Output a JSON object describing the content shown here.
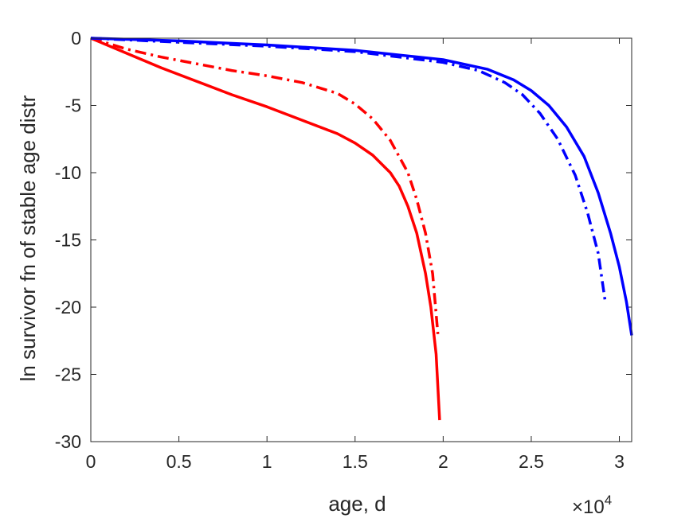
{
  "chart_data": {
    "type": "line",
    "xlabel": "age, d",
    "ylabel": "ln survivor fn of stable age distr",
    "x_multiplier": {
      "base": "×10",
      "exponent": "4"
    },
    "xlim": [
      0,
      30700
    ],
    "ylim": [
      -30,
      0
    ],
    "xticks": [
      0,
      5000,
      10000,
      15000,
      20000,
      25000,
      30000
    ],
    "xtick_labels": [
      "0",
      "0.5",
      "1",
      "1.5",
      "2",
      "2.5",
      "3"
    ],
    "yticks": [
      0,
      -5,
      -10,
      -15,
      -20,
      -25,
      -30
    ],
    "ytick_labels": [
      "0",
      "-5",
      "-10",
      "-15",
      "-20",
      "-25",
      "-30"
    ],
    "grid": false,
    "box": true,
    "series": [
      {
        "color": "#ff0000",
        "dash": "solid",
        "points": [
          [
            0,
            0
          ],
          [
            2000,
            -1.1
          ],
          [
            4000,
            -2.2
          ],
          [
            6000,
            -3.2
          ],
          [
            8000,
            -4.2
          ],
          [
            10000,
            -5.1
          ],
          [
            12000,
            -6.1
          ],
          [
            14000,
            -7.1
          ],
          [
            15000,
            -7.8
          ],
          [
            16000,
            -8.7
          ],
          [
            17000,
            -10.0
          ],
          [
            17500,
            -11.0
          ],
          [
            18000,
            -12.5
          ],
          [
            18500,
            -14.5
          ],
          [
            19000,
            -17.5
          ],
          [
            19300,
            -20.0
          ],
          [
            19600,
            -23.5
          ],
          [
            19800,
            -28.4
          ]
        ]
      },
      {
        "color": "#ff0000",
        "dash": "dashdot",
        "points": [
          [
            0,
            0
          ],
          [
            2000,
            -0.8
          ],
          [
            4000,
            -1.4
          ],
          [
            6000,
            -1.9
          ],
          [
            8000,
            -2.4
          ],
          [
            10000,
            -2.8
          ],
          [
            12000,
            -3.3
          ],
          [
            14000,
            -4.1
          ],
          [
            15000,
            -4.9
          ],
          [
            16000,
            -6.0
          ],
          [
            17000,
            -7.6
          ],
          [
            18000,
            -10.0
          ],
          [
            18500,
            -12.0
          ],
          [
            19000,
            -14.5
          ],
          [
            19400,
            -17.5
          ],
          [
            19700,
            -22.0
          ]
        ]
      },
      {
        "color": "#0000ff",
        "dash": "solid",
        "points": [
          [
            0,
            0
          ],
          [
            5000,
            -0.2
          ],
          [
            10000,
            -0.5
          ],
          [
            15000,
            -0.9
          ],
          [
            20000,
            -1.6
          ],
          [
            22500,
            -2.3
          ],
          [
            24000,
            -3.1
          ],
          [
            25000,
            -3.9
          ],
          [
            26000,
            -5.0
          ],
          [
            27000,
            -6.6
          ],
          [
            28000,
            -8.8
          ],
          [
            28800,
            -11.5
          ],
          [
            29500,
            -14.5
          ],
          [
            30000,
            -17.0
          ],
          [
            30400,
            -19.6
          ],
          [
            30700,
            -22.1
          ]
        ]
      },
      {
        "color": "#0000ff",
        "dash": "dashdot",
        "points": [
          [
            0,
            0
          ],
          [
            5000,
            -0.3
          ],
          [
            10000,
            -0.6
          ],
          [
            15000,
            -1.0
          ],
          [
            20000,
            -1.8
          ],
          [
            22000,
            -2.4
          ],
          [
            23500,
            -3.3
          ],
          [
            24500,
            -4.2
          ],
          [
            25500,
            -5.6
          ],
          [
            26500,
            -7.5
          ],
          [
            27500,
            -10.2
          ],
          [
            28200,
            -13.0
          ],
          [
            28800,
            -16.0
          ],
          [
            29200,
            -19.6
          ]
        ]
      }
    ]
  }
}
